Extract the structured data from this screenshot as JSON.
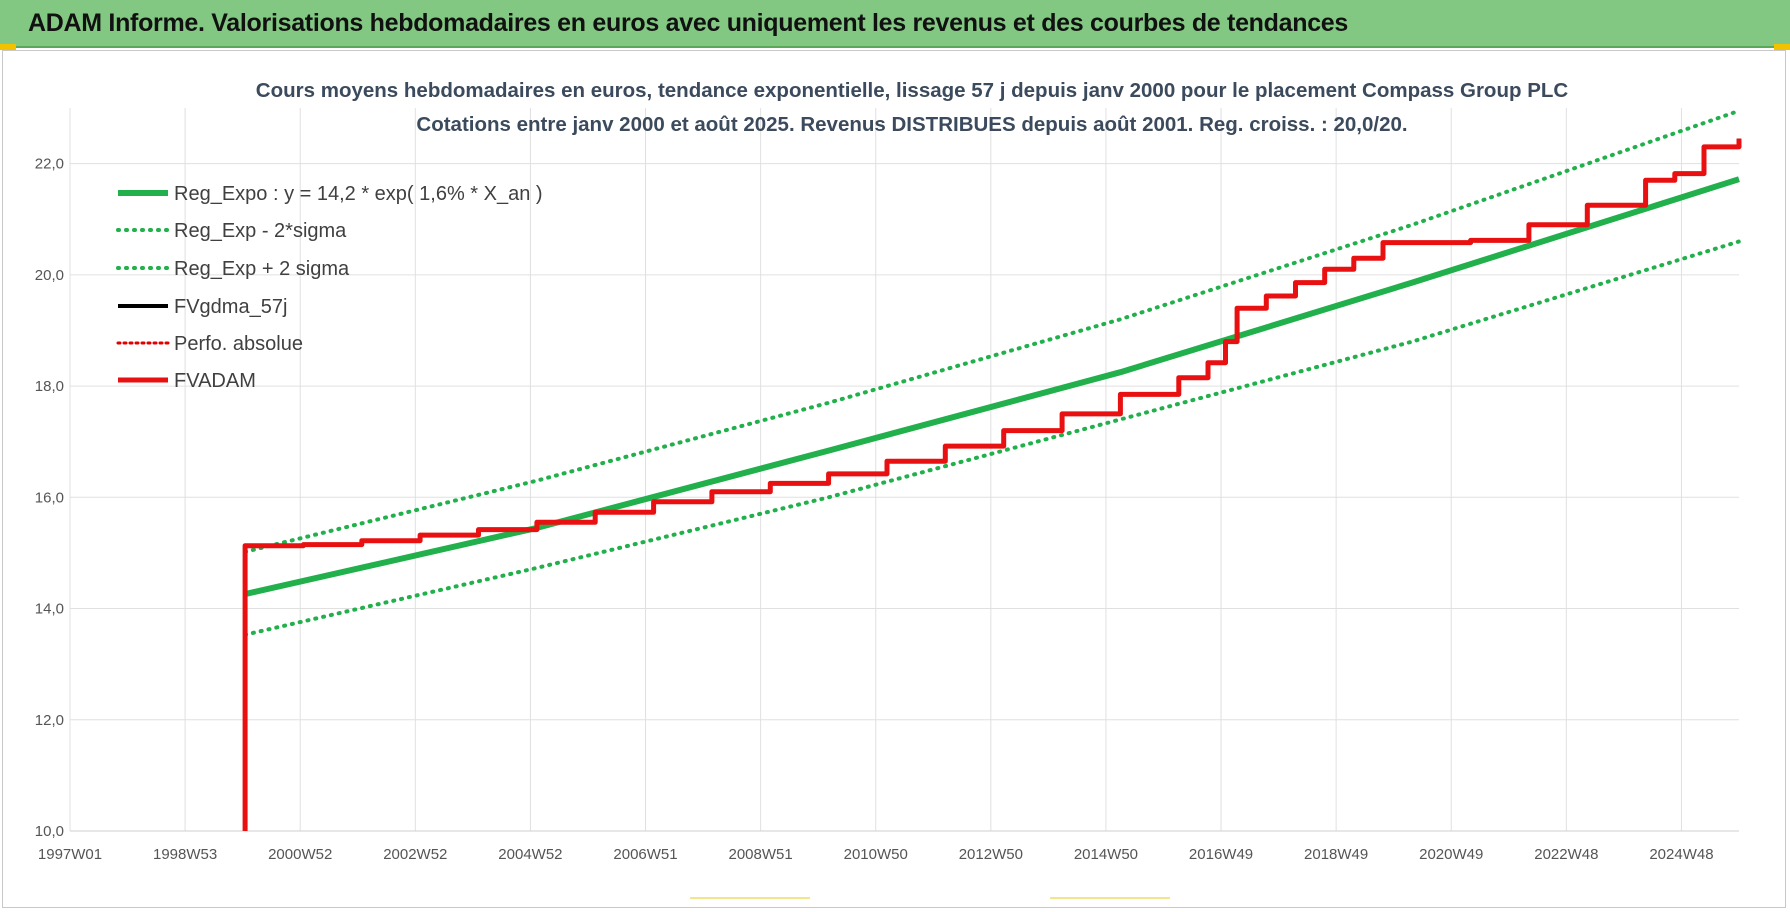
{
  "header": {
    "title": "ADAM Informe. Valorisations hebdomadaires en euros avec uniquement les revenus et des courbes de tendances"
  },
  "colors": {
    "header_bg": "#82c882",
    "reg_expo": "#21b04b",
    "bands": "#21b04b",
    "fvgdma": "#000000",
    "perfo": "#e00000",
    "fvadam": "#e81010",
    "grid": "#e0e0e0"
  },
  "chart_data": {
    "type": "line",
    "title_lines": [
      "Cours moyens hebdomadaires en euros, tendance exponentielle, lissage 57 j depuis janv 2000  pour le placement Compass Group PLC",
      "Cotations entre janv 2000 et août 2025.  Revenus DISTRIBUES depuis août 2001. Reg. croiss. : 20,0/20."
    ],
    "x_tick_labels": [
      "1997W01",
      "1998W53",
      "2000W52",
      "2002W52",
      "2004W52",
      "2006W51",
      "2008W51",
      "2010W50",
      "2012W50",
      "2014W50",
      "2016W49",
      "2018W49",
      "2020W49",
      "2022W48",
      "2024W48"
    ],
    "x_range": [
      1997.0,
      2025.6
    ],
    "y_ticks": [
      "10,0",
      "12,0",
      "14,0",
      "16,0",
      "18,0",
      "20,0",
      "22,0"
    ],
    "ylim": [
      10,
      23
    ],
    "grid": true,
    "legend_position": "top-left",
    "series": [
      {
        "name": "Reg_Expo : y = 14,2 * exp( 1,6% *  X_an )",
        "style": "solid",
        "x": [
          2000.0,
          2005.0,
          2010.0,
          2015.0,
          2020.0,
          2025.6
        ],
        "y": [
          14.26,
          15.45,
          16.84,
          18.25,
          19.86,
          21.72
        ]
      },
      {
        "name": "Reg_Exp - 2*sigma",
        "style": "dotted",
        "x": [
          2000.0,
          2005.0,
          2010.0,
          2015.0,
          2020.0,
          2025.6
        ],
        "y": [
          13.53,
          14.73,
          16.0,
          17.4,
          18.8,
          20.6
        ]
      },
      {
        "name": "Reg_Exp + 2 sigma",
        "style": "dotted",
        "x": [
          2000.0,
          2005.0,
          2010.0,
          2015.0,
          2020.0,
          2025.6
        ],
        "y": [
          15.02,
          16.3,
          17.7,
          19.2,
          20.9,
          22.95
        ]
      },
      {
        "name": "FVgdma_57j",
        "style": "solid",
        "x": [
          2000.0,
          2000.0,
          2001.0,
          2002.0,
          2003.0,
          2004.0,
          2005.0,
          2006.0,
          2007.0,
          2008.0,
          2009.0,
          2010.0,
          2011.0,
          2012.0,
          2013.0,
          2014.0,
          2015.0,
          2016.0,
          2016.5,
          2016.8,
          2017.0,
          2017.5,
          2018.0,
          2018.5,
          2019.0,
          2019.5,
          2020.0,
          2021.0,
          2022.0,
          2023.0,
          2024.0,
          2024.5,
          2025.0,
          2025.6
        ],
        "y": [
          10.0,
          15.13,
          15.15,
          15.22,
          15.32,
          15.42,
          15.55,
          15.73,
          15.92,
          16.1,
          16.25,
          16.42,
          16.65,
          16.92,
          17.2,
          17.5,
          17.85,
          18.15,
          18.42,
          18.8,
          19.4,
          19.62,
          19.86,
          20.1,
          20.3,
          20.58,
          20.58,
          20.62,
          20.9,
          21.25,
          21.7,
          21.82,
          22.3,
          22.45
        ]
      },
      {
        "name": "Perfo. absolue",
        "style": "dotted",
        "x": [],
        "y": []
      },
      {
        "name": "FVADAM",
        "style": "solid",
        "x": [
          2000.0,
          2000.0,
          2001.0,
          2002.0,
          2003.0,
          2004.0,
          2005.0,
          2006.0,
          2007.0,
          2008.0,
          2009.0,
          2010.0,
          2011.0,
          2012.0,
          2013.0,
          2014.0,
          2015.0,
          2016.0,
          2016.5,
          2016.8,
          2017.0,
          2017.5,
          2018.0,
          2018.5,
          2019.0,
          2019.5,
          2020.0,
          2021.0,
          2022.0,
          2023.0,
          2024.0,
          2024.5,
          2025.0,
          2025.6
        ],
        "y": [
          10.0,
          15.13,
          15.15,
          15.22,
          15.32,
          15.42,
          15.55,
          15.73,
          15.92,
          16.1,
          16.25,
          16.42,
          16.65,
          16.92,
          17.2,
          17.5,
          17.85,
          18.15,
          18.42,
          18.8,
          19.4,
          19.62,
          19.86,
          20.1,
          20.3,
          20.58,
          20.58,
          20.62,
          20.9,
          21.25,
          21.7,
          21.82,
          22.3,
          22.45
        ]
      }
    ]
  }
}
